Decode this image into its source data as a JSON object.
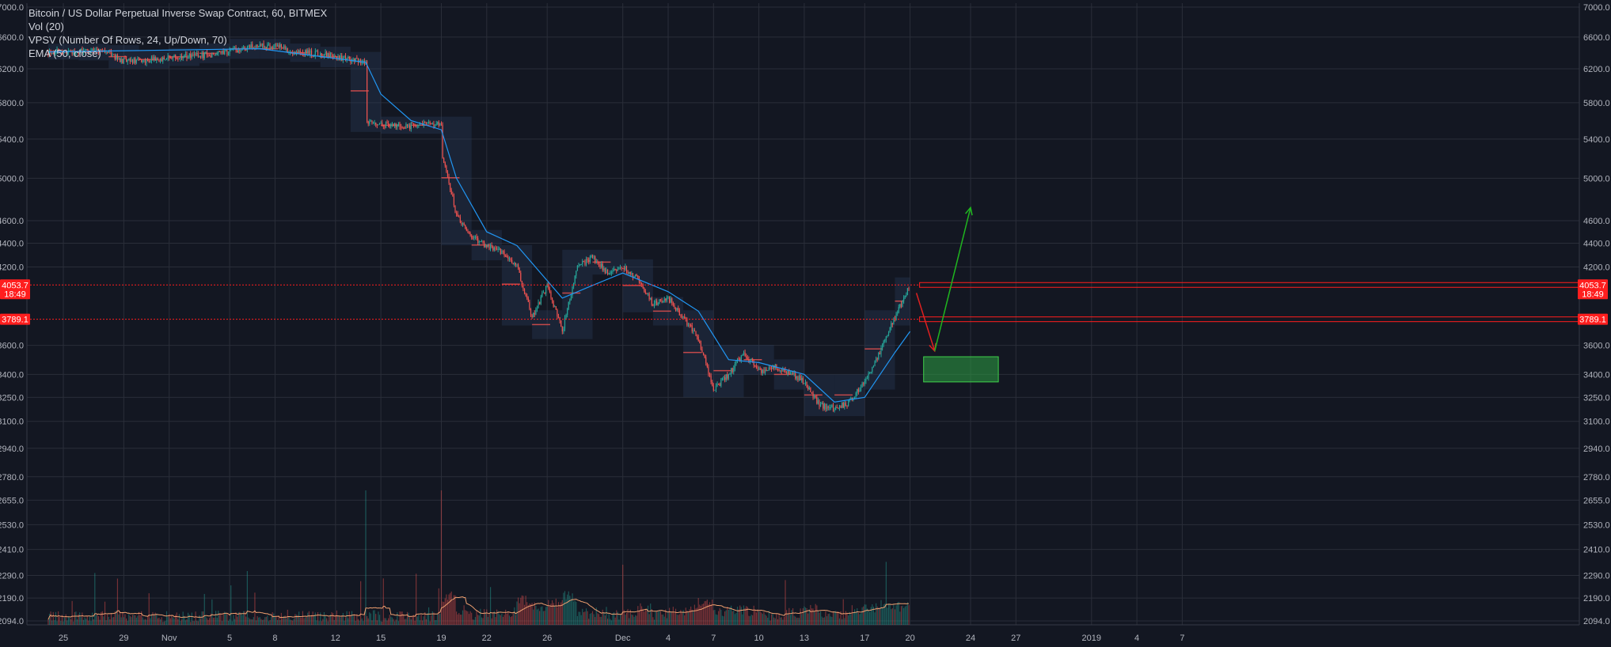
{
  "legend": {
    "symbol": "Bitcoin / US Dollar Perpetual Inverse Swap Contract, 60, BITMEX",
    "vol": "Vol (20)",
    "vpsv": "VPSV (Number Of Rows, 24, Up/Down, 70)",
    "ema": "EMA (50, close)"
  },
  "colors": {
    "background": "#131722",
    "grid": "#2a2e39",
    "axis_text": "#b2b5be",
    "up": "#26a69a",
    "down": "#ef5350",
    "ema": "#2196f3",
    "vol_ma": "#f0a070",
    "level": "#ff1e1e",
    "zone": "#2ea043",
    "arrow_up": "#1fb61f",
    "arrow_down": "#e02020"
  },
  "chart_data": {
    "type": "candlestick",
    "y_axis": {
      "scale": "log",
      "ticks": [
        "7000.0",
        "6600.0",
        "6200.0",
        "5800.0",
        "5400.0",
        "5000.0",
        "4600.0",
        "4400.0",
        "4200.0",
        "3600.0",
        "3400.0",
        "3250.0",
        "3100.0",
        "2940.0",
        "2780.0",
        "2655.0",
        "2530.0",
        "2410.0",
        "2290.0",
        "2190.0",
        "2094.0"
      ],
      "tick_values": [
        7000,
        6600,
        6200,
        5800,
        5400,
        5000,
        4600,
        4400,
        4200,
        3600,
        3400,
        3250,
        3100,
        2940,
        2780,
        2655,
        2530,
        2410,
        2290,
        2190,
        2094
      ]
    },
    "x_axis": {
      "ticks": [
        "25",
        "29",
        "Nov",
        "5",
        "8",
        "12",
        "15",
        "19",
        "22",
        "26",
        "Dec",
        "4",
        "7",
        "10",
        "13",
        "17",
        "20",
        "24",
        "27",
        "2019",
        "4",
        "7"
      ],
      "tick_dates": [
        "2018-10-25",
        "2018-10-29",
        "2018-11-01",
        "2018-11-05",
        "2018-11-08",
        "2018-11-12",
        "2018-11-15",
        "2018-11-19",
        "2018-11-22",
        "2018-11-26",
        "2018-12-01",
        "2018-12-04",
        "2018-12-07",
        "2018-12-10",
        "2018-12-13",
        "2018-12-17",
        "2018-12-20",
        "2018-12-24",
        "2018-12-27",
        "2019-01-01",
        "2019-01-04",
        "2019-01-07"
      ]
    },
    "price_labels": [
      {
        "text": "4053.7",
        "value": 4053.7
      },
      {
        "text": "18:49",
        "value": 3985
      },
      {
        "text": "3789.1",
        "value": 3789.1
      }
    ],
    "price_path": [
      {
        "date": "2018-10-24",
        "close": 6410
      },
      {
        "date": "2018-10-27",
        "close": 6420
      },
      {
        "date": "2018-10-28",
        "close": 6400
      },
      {
        "date": "2018-10-29",
        "close": 6290
      },
      {
        "date": "2018-10-31",
        "close": 6310
      },
      {
        "date": "2018-11-02",
        "close": 6350
      },
      {
        "date": "2018-11-04",
        "close": 6380
      },
      {
        "date": "2018-11-06",
        "close": 6460
      },
      {
        "date": "2018-11-08",
        "close": 6500
      },
      {
        "date": "2018-11-09",
        "close": 6420
      },
      {
        "date": "2018-11-11",
        "close": 6380
      },
      {
        "date": "2018-11-12",
        "close": 6350
      },
      {
        "date": "2018-11-14",
        "close": 6280
      },
      {
        "date": "2018-11-14",
        "close": 5600
      },
      {
        "date": "2018-11-15",
        "close": 5560
      },
      {
        "date": "2018-11-17",
        "close": 5540
      },
      {
        "date": "2018-11-19",
        "close": 5560
      },
      {
        "date": "2018-11-19",
        "close": 5200
      },
      {
        "date": "2018-11-20",
        "close": 4650
      },
      {
        "date": "2018-11-21",
        "close": 4450
      },
      {
        "date": "2018-11-22",
        "close": 4380
      },
      {
        "date": "2018-11-23",
        "close": 4320
      },
      {
        "date": "2018-11-24",
        "close": 4200
      },
      {
        "date": "2018-11-25",
        "close": 3800
      },
      {
        "date": "2018-11-26",
        "close": 4050
      },
      {
        "date": "2018-11-27",
        "close": 3700
      },
      {
        "date": "2018-11-28",
        "close": 4200
      },
      {
        "date": "2018-11-29",
        "close": 4280
      },
      {
        "date": "2018-11-30",
        "close": 4150
      },
      {
        "date": "2018-12-01",
        "close": 4200
      },
      {
        "date": "2018-12-02",
        "close": 4100
      },
      {
        "date": "2018-12-03",
        "close": 3900
      },
      {
        "date": "2018-12-04",
        "close": 3950
      },
      {
        "date": "2018-12-05",
        "close": 3800
      },
      {
        "date": "2018-12-06",
        "close": 3650
      },
      {
        "date": "2018-12-07",
        "close": 3300
      },
      {
        "date": "2018-12-08",
        "close": 3400
      },
      {
        "date": "2018-12-09",
        "close": 3550
      },
      {
        "date": "2018-12-10",
        "close": 3420
      },
      {
        "date": "2018-12-11",
        "close": 3450
      },
      {
        "date": "2018-12-12",
        "close": 3420
      },
      {
        "date": "2018-12-13",
        "close": 3350
      },
      {
        "date": "2018-12-14",
        "close": 3200
      },
      {
        "date": "2018-12-15",
        "close": 3180
      },
      {
        "date": "2018-12-16",
        "close": 3220
      },
      {
        "date": "2018-12-17",
        "close": 3350
      },
      {
        "date": "2018-12-18",
        "close": 3550
      },
      {
        "date": "2018-12-19",
        "close": 3800
      },
      {
        "date": "2018-12-20",
        "close": 4053.7
      }
    ],
    "ema_50": [
      {
        "date": "2018-10-24",
        "value": 6410
      },
      {
        "date": "2018-11-07",
        "value": 6450
      },
      {
        "date": "2018-11-14",
        "value": 6280
      },
      {
        "date": "2018-11-15",
        "value": 5900
      },
      {
        "date": "2018-11-17",
        "value": 5600
      },
      {
        "date": "2018-11-19",
        "value": 5500
      },
      {
        "date": "2018-11-20",
        "value": 5000
      },
      {
        "date": "2018-11-22",
        "value": 4500
      },
      {
        "date": "2018-11-24",
        "value": 4380
      },
      {
        "date": "2018-11-27",
        "value": 3950
      },
      {
        "date": "2018-11-29",
        "value": 4050
      },
      {
        "date": "2018-12-01",
        "value": 4150
      },
      {
        "date": "2018-12-04",
        "value": 4000
      },
      {
        "date": "2018-12-06",
        "value": 3850
      },
      {
        "date": "2018-12-08",
        "value": 3500
      },
      {
        "date": "2018-12-10",
        "value": 3480
      },
      {
        "date": "2018-12-13",
        "value": 3400
      },
      {
        "date": "2018-12-15",
        "value": 3220
      },
      {
        "date": "2018-12-17",
        "value": 3250
      },
      {
        "date": "2018-12-19",
        "value": 3550
      },
      {
        "date": "2018-12-20",
        "value": 3700
      }
    ],
    "annotations": [
      {
        "type": "horizontal_level",
        "value": 4053.7,
        "from": "2018-12-20"
      },
      {
        "type": "horizontal_level",
        "value": 3789.1,
        "from": "2018-12-20"
      },
      {
        "type": "arrow",
        "color": "down",
        "from": {
          "date": "2018-12-20",
          "value": 3990
        },
        "to": {
          "date": "2018-12-21",
          "value": 3560
        }
      },
      {
        "type": "arrow",
        "color": "up",
        "from": {
          "date": "2018-12-21",
          "value": 3560
        },
        "to": {
          "date": "2018-12-24",
          "value": 4720
        }
      },
      {
        "type": "rectangle",
        "from_date": "2018-12-21",
        "to_date": "2018-12-25",
        "top": 3520,
        "bottom": 3350
      }
    ],
    "volume": {
      "baseline": 2094
    },
    "grid": true,
    "legend_position": "top-left"
  }
}
